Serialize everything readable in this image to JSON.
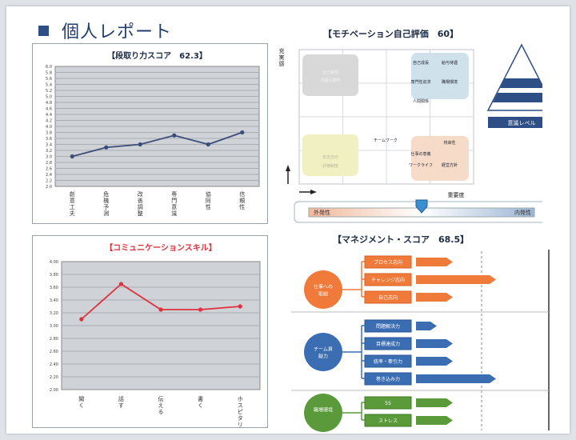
{
  "header": {
    "title": "個人レポート"
  },
  "chart_data": [
    {
      "type": "line",
      "title": "【段取り力スコア　62.3】",
      "categories": [
        "創意工夫",
        "危機予測",
        "改善調整",
        "専門意識",
        "協同性",
        "信頼性"
      ],
      "values": [
        3.0,
        3.3,
        3.4,
        3.7,
        3.4,
        3.8
      ],
      "y_ticks": [
        "6.0",
        "5.8",
        "5.6",
        "5.4",
        "5.2",
        "5.0",
        "4.8",
        "4.6",
        "4.4",
        "4.2",
        "4.0",
        "3.8",
        "3.6",
        "3.4",
        "3.2",
        "3.0",
        "2.8",
        "2.6",
        "2.4",
        "2.2",
        "2.0"
      ],
      "ylim": [
        2.0,
        6.0
      ],
      "color": "#3b4e7a",
      "grid": true
    },
    {
      "type": "line",
      "title": "【コミュニケーションスキル】",
      "categories": [
        "聞く",
        "話す",
        "伝える",
        "書く",
        "ホスピタリティ"
      ],
      "values": [
        3.1,
        3.65,
        3.25,
        3.25,
        3.3
      ],
      "y_ticks": [
        "4.00",
        "3.80",
        "3.60",
        "3.40",
        "3.20",
        "3.00",
        "2.80",
        "2.60",
        "2.40",
        "2.20",
        "2.00"
      ],
      "ylim": [
        2.0,
        4.0
      ],
      "color": "#e0303d",
      "grid": true
    }
  ],
  "motivation": {
    "title": "【モチベーション自己評価　60】",
    "axis_y": "充実感",
    "axis_x": "重要度",
    "cells": {
      "tl": [
        "自己実現",
        "周囲の期待"
      ],
      "tr": [
        "自己成長",
        "給与待遇",
        "専門性追求",
        "職場環境",
        "人間関係"
      ],
      "mid": [
        "チームワーク"
      ],
      "bl": [
        "安定志向",
        "評価制度"
      ],
      "br": [
        "仕事の意義",
        "ワークライフ",
        "将来性",
        "経営方針"
      ]
    },
    "pyramid_label": "意識レベル",
    "scale_left": "外発性",
    "scale_right": "内発性",
    "scale_marker_pct": 0.5
  },
  "management": {
    "title": "【マネジメント・スコア　68.5】",
    "groups": [
      {
        "label": "仕事への取組",
        "color": "#f07a3a",
        "dark": "#d95f1f",
        "items": [
          {
            "label": "プロセス志向",
            "value": 0.38
          },
          {
            "label": "チャレンジ志向",
            "value": 0.92
          },
          {
            "label": "自己志向",
            "value": 0.38
          }
        ]
      },
      {
        "label": "チーム貢献力",
        "color": "#3a6db2",
        "dark": "#2a5596",
        "items": [
          {
            "label": "問題解決力",
            "value": 0.18
          },
          {
            "label": "目標達成力",
            "value": 0.38
          },
          {
            "label": "統率・牽引力",
            "value": 0.38
          },
          {
            "label": "巻き込み力",
            "value": 0.92
          }
        ]
      },
      {
        "label": "職場環境",
        "color": "#5a9a3a",
        "dark": "#3f7a26",
        "items": [
          {
            "label": "5S",
            "value": 0.38
          },
          {
            "label": "ストレス",
            "value": 0.38
          }
        ]
      }
    ]
  }
}
